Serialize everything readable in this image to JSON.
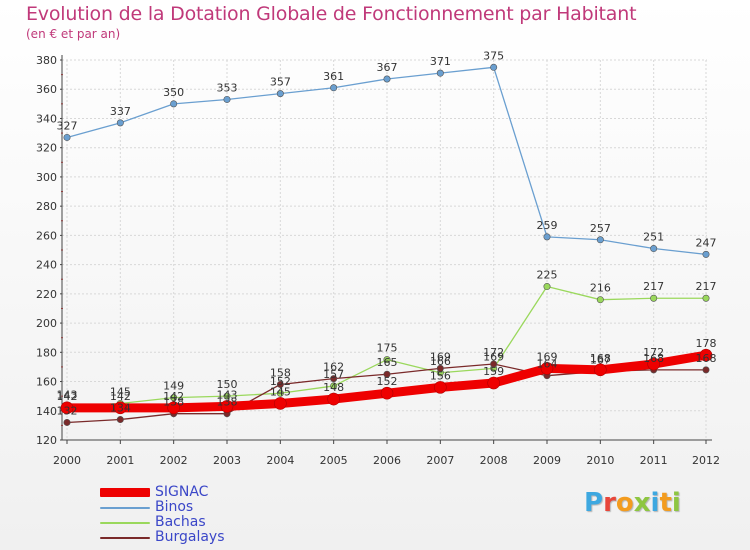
{
  "header": {
    "title": "Evolution de la Dotation Globale de Fonctionnement par Habitant",
    "subtitle": "(en € et par an)"
  },
  "brand": {
    "letters": [
      "P",
      "r",
      "o",
      "x",
      "i",
      "t",
      "i"
    ],
    "colors": [
      "#3ea8e0",
      "#e8463a",
      "#f39c1f",
      "#8ec641",
      "#3ea8e0",
      "#f39c1f",
      "#8ec641"
    ]
  },
  "chart_data": {
    "type": "line",
    "title": "Evolution de la Dotation Globale de Fonctionnement par Habitant",
    "subtitle": "(en € et par an)",
    "xlabel": "",
    "ylabel": "",
    "x": [
      "2000",
      "2001",
      "2002",
      "2003",
      "2004",
      "2005",
      "2006",
      "2007",
      "2008",
      "2009",
      "2010",
      "2011",
      "2012"
    ],
    "ylim": [
      120,
      380
    ],
    "yticks": [
      120,
      140,
      160,
      180,
      200,
      220,
      240,
      260,
      280,
      300,
      320,
      340,
      360,
      380
    ],
    "grid": true,
    "legend_position": "bottom-left",
    "series": [
      {
        "name": "SIGNAC",
        "color": "#ee0000",
        "values": [
          142,
          142,
          142,
          143,
          145,
          148,
          152,
          156,
          159,
          169,
          168,
          172,
          178
        ],
        "labels": [
          "142",
          "142",
          "142",
          "143",
          "145",
          "148",
          "152",
          "156",
          "159",
          "169",
          "168",
          "172",
          "178"
        ]
      },
      {
        "name": "Binos",
        "color": "#6a9fd0",
        "values": [
          327,
          337,
          350,
          353,
          357,
          361,
          367,
          371,
          375,
          259,
          257,
          251,
          247
        ],
        "labels": [
          "327",
          "337",
          "350",
          "353",
          "357",
          "361",
          "367",
          "371",
          "375",
          "259",
          "257",
          "251",
          "247"
        ]
      },
      {
        "name": "Bachas",
        "color": "#9ad85c",
        "values": [
          143,
          145,
          149,
          150,
          152,
          157,
          175,
          166,
          169,
          225,
          216,
          217,
          217
        ],
        "labels": [
          "143",
          "145",
          "149",
          "150",
          "152",
          "157",
          "175",
          "166",
          "169",
          "225",
          "216",
          "217",
          "217"
        ]
      },
      {
        "name": "Burgalays",
        "color": "#7a2a2a",
        "values": [
          132,
          134,
          138,
          138,
          158,
          162,
          165,
          169,
          172,
          164,
          167,
          168,
          168
        ],
        "labels": [
          "132",
          "134",
          "138",
          "138",
          "158",
          "162",
          "165",
          "169",
          "172",
          "164",
          "167",
          "168",
          "168"
        ]
      }
    ]
  }
}
